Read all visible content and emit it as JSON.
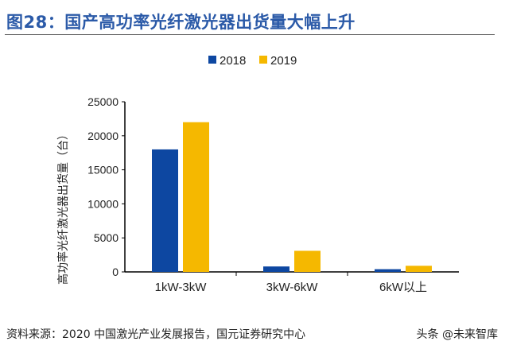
{
  "title": "图28：国产高功率光纤激光器出货量大幅上升",
  "source": "资料来源：2020 中国激光产业发展报告，国元证券研究中心",
  "watermark": "头条 @未来智库",
  "chart_data": {
    "type": "bar",
    "categories": [
      "1kW-3kW",
      "3kW-6kW",
      "6kW以上"
    ],
    "series": [
      {
        "name": "2018",
        "values": [
          18000,
          800,
          400
        ],
        "color": "#0d47a1"
      },
      {
        "name": "2019",
        "values": [
          22000,
          3100,
          900
        ],
        "color": "#f5b800"
      }
    ],
    "ylabel": "高功率光纤激光器出货量（台）",
    "ylim": [
      0,
      25000
    ],
    "yticks": [
      0,
      5000,
      10000,
      15000,
      20000,
      25000
    ],
    "grid": false,
    "legend": "top"
  }
}
